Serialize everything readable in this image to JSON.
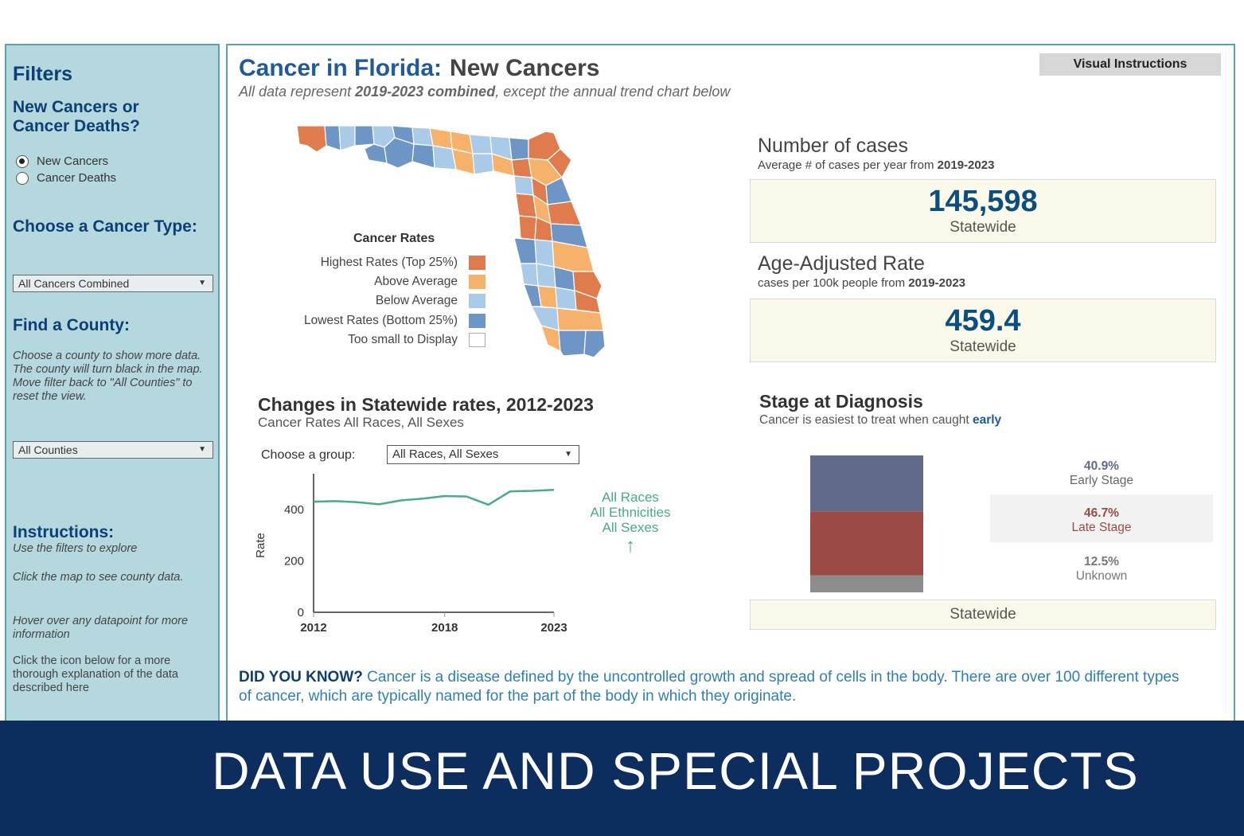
{
  "sidebar": {
    "filters_title": "Filters",
    "question_title": "New Cancers or Cancer Deaths?",
    "radios": [
      {
        "label": "New Cancers",
        "selected": true
      },
      {
        "label": "Cancer Deaths",
        "selected": false
      }
    ],
    "cancer_type_title": "Choose a Cancer Type:",
    "cancer_type_value": "All Cancers Combined",
    "find_county_title": "Find a County:",
    "find_county_help": "Choose a county to show more data. The county will turn black in the map. Move filter back to \"All Counties\" to reset the view.",
    "county_value": "All Counties",
    "instructions_title": "Instructions:",
    "instr_1": "Use the filters to explore",
    "instr_2": "Click the map to see county data.",
    "instr_3": "Hover over any datapoint for more information",
    "instr_4": "Click the icon below for a more thorough explanation of the data described here"
  },
  "header": {
    "title": "Cancer in Florida:",
    "title_sub": "New Cancers",
    "subtitle_pre": "All data represent ",
    "subtitle_bold": "2019-2023 combined",
    "subtitle_post": ", except the annual trend chart below",
    "visual_instructions": "Visual Instructions"
  },
  "map_legend": {
    "title": "Cancer Rates",
    "items": [
      {
        "label": "Highest Rates (Top 25%)",
        "color": "#e07b4d"
      },
      {
        "label": "Above Average",
        "color": "#f6b26b"
      },
      {
        "label": "Below Average",
        "color": "#a9cbe8"
      },
      {
        "label": "Lowest Rates (Bottom 25%)",
        "color": "#6d96c6"
      },
      {
        "label": "Too small to Display",
        "color": "#ffffff"
      }
    ]
  },
  "kpis": {
    "cases_title": "Number of cases",
    "cases_sub_pre": "Average # of cases per year from ",
    "cases_sub_bold": "2019-2023",
    "cases_value": "145,598",
    "cases_label": "Statewide",
    "rate_title": "Age-Adjusted Rate",
    "rate_sub_pre": "cases per 100k people from ",
    "rate_sub_bold": "2019-2023",
    "rate_value": "459.4",
    "rate_label": "Statewide"
  },
  "trend": {
    "title": "Changes in Statewide rates, 2012-2023",
    "subtitle": "Cancer Rates All Races, All Sexes",
    "group_label": "Choose a group:",
    "group_value": "All Races, All Sexes",
    "annotation": [
      "All Races",
      "All Ethnicities",
      "All Sexes"
    ],
    "arrow": "↑"
  },
  "stage": {
    "title": "Stage at Diagnosis",
    "subtitle_pre": "Cancer is easiest to treat when caught ",
    "subtitle_bold": "early",
    "footer": "Statewide",
    "items": [
      {
        "pct": "40.9%",
        "label": "Early Stage",
        "value": 40.9,
        "color": "#636b8c"
      },
      {
        "pct": "46.7%",
        "label": "Late Stage",
        "value": 46.7,
        "color": "#9b4b43"
      },
      {
        "pct": "12.5%",
        "label": "Unknown",
        "value": 12.5,
        "color": "#8c8c8c"
      }
    ]
  },
  "did_you_know": {
    "label": "DID YOU KNOW?",
    "text": " Cancer is a disease defined by the uncontrolled growth and spread of cells in the body. There are over 100 different types of cancer, which are typically named for the part of the body in which they originate."
  },
  "banner": {
    "text": "DATA USE AND SPECIAL PROJECTS"
  },
  "chart_data": {
    "type": "line",
    "title": "Changes in Statewide rates, 2012-2023",
    "xlabel": "",
    "ylabel": "Rate",
    "x": [
      2012,
      2013,
      2014,
      2015,
      2016,
      2017,
      2018,
      2019,
      2020,
      2021,
      2022,
      2023
    ],
    "series": [
      {
        "name": "All Races, All Ethnicities, All Sexes",
        "values": [
          430,
          432,
          428,
          420,
          435,
          442,
          452,
          450,
          418,
          470,
          472,
          476
        ]
      }
    ],
    "x_ticks": [
      "2012",
      "2018",
      "2023"
    ],
    "y_ticks": [
      "0",
      "200",
      "400"
    ],
    "ylim": [
      0,
      520
    ],
    "xlim": [
      2012,
      2023
    ]
  }
}
